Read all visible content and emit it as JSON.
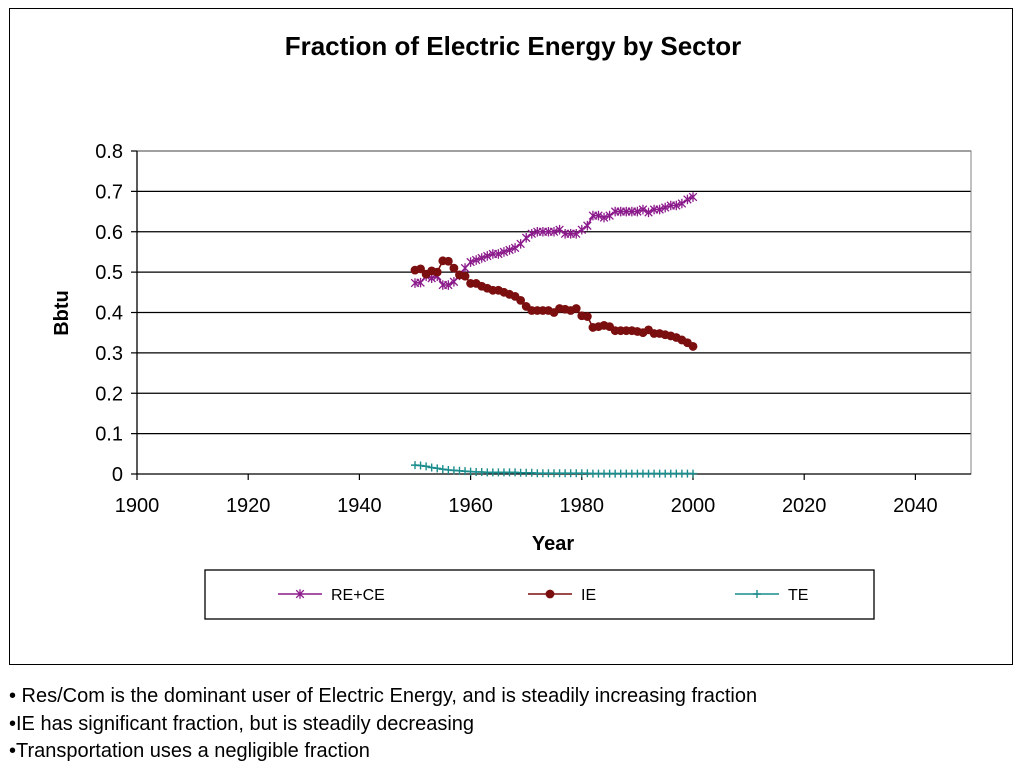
{
  "chart_data": {
    "type": "line",
    "title": "Fraction of Electric Energy by Sector",
    "xlabel": "Year",
    "ylabel": "Bbtu",
    "xlim": [
      1900,
      2050
    ],
    "ylim": [
      0,
      0.8
    ],
    "xticks": [
      "1900",
      "1920",
      "1940",
      "1960",
      "1980",
      "2000",
      "2020",
      "2040"
    ],
    "yticks": [
      "0",
      "0.1",
      "0.2",
      "0.3",
      "0.4",
      "0.5",
      "0.6",
      "0.7",
      "0.8"
    ],
    "grid": "horizontal",
    "legend_position": "bottom",
    "series": [
      {
        "name": "RE+CE",
        "color": "#8b1a8b",
        "marker": "star",
        "x": [
          1950,
          1951,
          1952,
          1953,
          1954,
          1955,
          1956,
          1957,
          1958,
          1959,
          1960,
          1961,
          1962,
          1963,
          1964,
          1965,
          1966,
          1967,
          1968,
          1969,
          1970,
          1971,
          1972,
          1973,
          1974,
          1975,
          1976,
          1977,
          1978,
          1979,
          1980,
          1981,
          1982,
          1983,
          1984,
          1985,
          1986,
          1987,
          1988,
          1989,
          1990,
          1991,
          1992,
          1993,
          1994,
          1995,
          1996,
          1997,
          1998,
          1999,
          2000
        ],
        "y": [
          0.473,
          0.474,
          0.49,
          0.485,
          0.49,
          0.468,
          0.468,
          0.476,
          0.492,
          0.51,
          0.525,
          0.53,
          0.535,
          0.54,
          0.545,
          0.545,
          0.55,
          0.555,
          0.56,
          0.57,
          0.585,
          0.595,
          0.6,
          0.6,
          0.6,
          0.6,
          0.605,
          0.595,
          0.595,
          0.595,
          0.605,
          0.615,
          0.64,
          0.64,
          0.635,
          0.64,
          0.65,
          0.65,
          0.65,
          0.65,
          0.65,
          0.655,
          0.648,
          0.655,
          0.655,
          0.66,
          0.665,
          0.665,
          0.67,
          0.68,
          0.686
        ]
      },
      {
        "name": "IE",
        "color": "#7b0e0e",
        "marker": "circle",
        "x": [
          1950,
          1951,
          1952,
          1953,
          1954,
          1955,
          1956,
          1957,
          1958,
          1959,
          1960,
          1961,
          1962,
          1963,
          1964,
          1965,
          1966,
          1967,
          1968,
          1969,
          1970,
          1971,
          1972,
          1973,
          1974,
          1975,
          1976,
          1977,
          1978,
          1979,
          1980,
          1981,
          1982,
          1983,
          1984,
          1985,
          1986,
          1987,
          1988,
          1989,
          1990,
          1991,
          1992,
          1993,
          1994,
          1995,
          1996,
          1997,
          1998,
          1999,
          2000
        ],
        "y": [
          0.505,
          0.508,
          0.495,
          0.503,
          0.5,
          0.528,
          0.527,
          0.51,
          0.493,
          0.49,
          0.472,
          0.472,
          0.465,
          0.46,
          0.455,
          0.455,
          0.45,
          0.445,
          0.44,
          0.43,
          0.415,
          0.405,
          0.405,
          0.405,
          0.405,
          0.4,
          0.41,
          0.408,
          0.405,
          0.41,
          0.392,
          0.39,
          0.363,
          0.365,
          0.368,
          0.365,
          0.355,
          0.355,
          0.355,
          0.355,
          0.353,
          0.35,
          0.357,
          0.348,
          0.348,
          0.345,
          0.342,
          0.338,
          0.332,
          0.325,
          0.316
        ]
      },
      {
        "name": "TE",
        "color": "#1a8c8c",
        "marker": "plus",
        "x": [
          1950,
          1951,
          1952,
          1953,
          1954,
          1955,
          1956,
          1957,
          1958,
          1959,
          1960,
          1961,
          1962,
          1963,
          1964,
          1965,
          1966,
          1967,
          1968,
          1969,
          1970,
          1971,
          1972,
          1973,
          1974,
          1975,
          1976,
          1977,
          1978,
          1979,
          1980,
          1981,
          1982,
          1983,
          1984,
          1985,
          1986,
          1987,
          1988,
          1989,
          1990,
          1991,
          1992,
          1993,
          1994,
          1995,
          1996,
          1997,
          1998,
          1999,
          2000
        ],
        "y": [
          0.022,
          0.021,
          0.019,
          0.016,
          0.014,
          0.012,
          0.01,
          0.009,
          0.008,
          0.007,
          0.006,
          0.005,
          0.005,
          0.004,
          0.004,
          0.004,
          0.004,
          0.004,
          0.004,
          0.003,
          0.003,
          0.003,
          0.002,
          0.002,
          0.002,
          0.002,
          0.002,
          0.002,
          0.002,
          0.002,
          0.002,
          0.002,
          0.001,
          0.001,
          0.001,
          0.001,
          0.001,
          0.001,
          0.001,
          0.001,
          0.001,
          0.001,
          0.001,
          0.001,
          0.001,
          0.001,
          0.001,
          0.001,
          0.001,
          0.001,
          0.001
        ]
      }
    ]
  },
  "notes": [
    "• Res/Com is the dominant user of Electric Energy, and is steadily increasing fraction",
    "•IE has significant fraction, but is steadily decreasing",
    "•Transportation uses a negligible fraction"
  ]
}
